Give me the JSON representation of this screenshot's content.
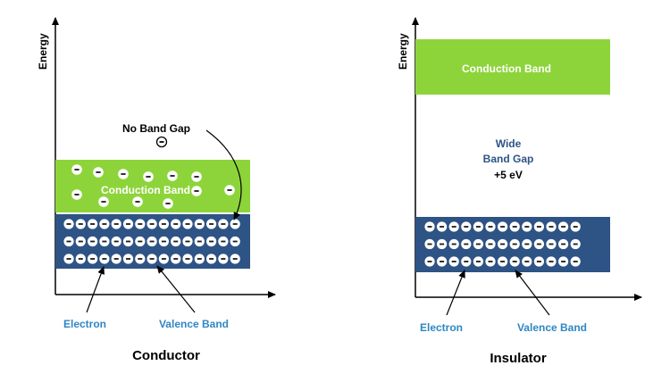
{
  "conductor": {
    "axis_label": "Energy",
    "conduction_band_label": "Conduction Band",
    "gap_label": "No Band Gap",
    "gap_electron_symbol": "−",
    "electron_label": "Electron",
    "valence_label": "Valence Band",
    "title": "Conductor",
    "valence_rows": 3,
    "valence_per_row": 15
  },
  "insulator": {
    "axis_label": "Energy",
    "conduction_band_label": "Conduction Band",
    "gap_line1": "Wide",
    "gap_line2": "Band Gap",
    "gap_value": "+5 eV",
    "electron_label": "Electron",
    "valence_label": "Valence Band",
    "title": "Insulator",
    "valence_rows": 3,
    "valence_per_row": 13
  },
  "colors": {
    "conduction_band": "#8dd43a",
    "valence_band": "#2e5385",
    "label_blue": "#2f86c4",
    "gap_text_blue": "#2e5385",
    "axis": "#000000"
  }
}
